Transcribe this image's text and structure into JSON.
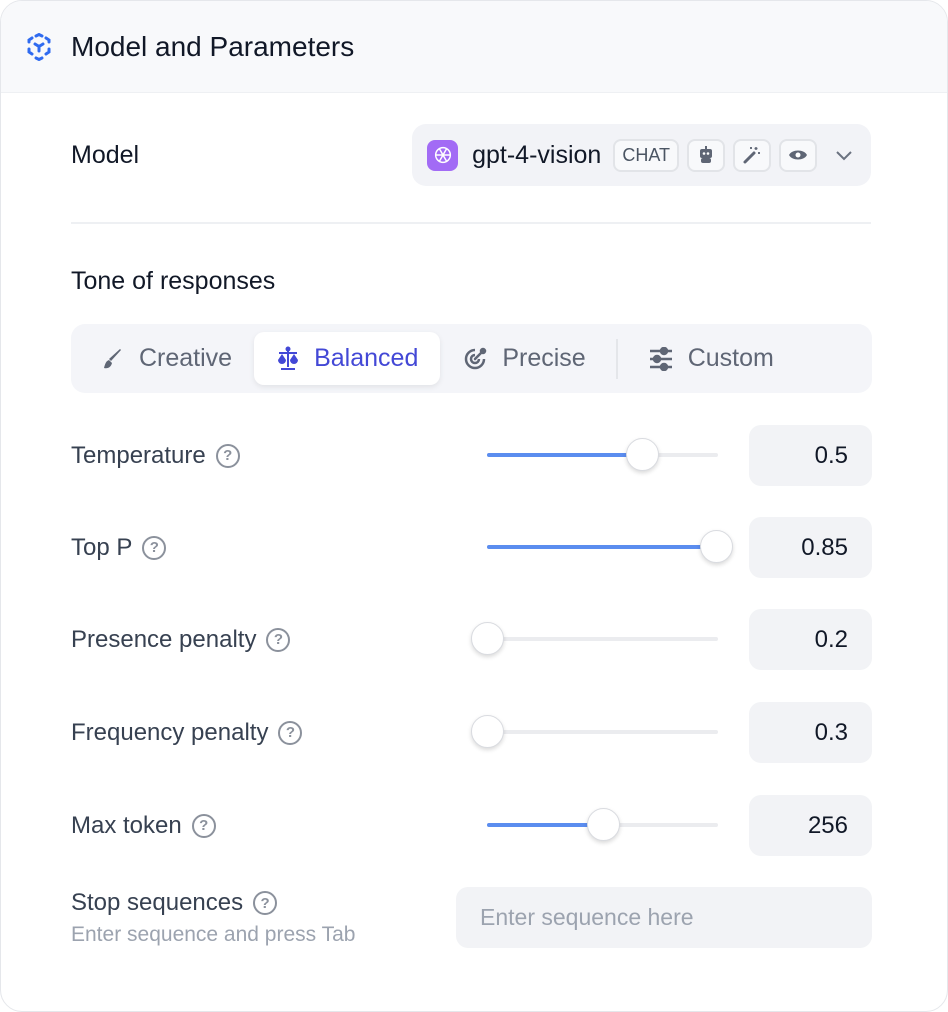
{
  "header": {
    "title": "Model and Parameters",
    "icon": "model-cube-icon"
  },
  "model": {
    "label": "Model",
    "name": "gpt-4-vision",
    "badge": "CHAT",
    "feature_icons": [
      "robot-icon",
      "magic-wand-icon",
      "eye-icon"
    ]
  },
  "tone": {
    "label": "Tone of responses",
    "tabs": [
      {
        "label": "Creative",
        "icon": "brush-icon"
      },
      {
        "label": "Balanced",
        "icon": "scale-icon",
        "active": true
      },
      {
        "label": "Precise",
        "icon": "target-icon"
      },
      {
        "label": "Custom",
        "icon": "sliders-icon"
      }
    ]
  },
  "accent": "#4348d6",
  "slider_color": "#5b8def",
  "params": [
    {
      "label": "Temperature",
      "value": "0.5",
      "fill": 0.67
    },
    {
      "label": "Top P",
      "value": "0.85",
      "fill": 0.99
    },
    {
      "label": "Presence penalty",
      "value": "0.2",
      "fill": 0
    },
    {
      "label": "Frequency penalty",
      "value": "0.3",
      "fill": 0
    },
    {
      "label": "Max token",
      "value": "256",
      "fill": 0.5
    }
  ],
  "stop": {
    "label": "Stop sequences",
    "hint": "Enter sequence and press Tab",
    "placeholder": "Enter sequence here"
  }
}
